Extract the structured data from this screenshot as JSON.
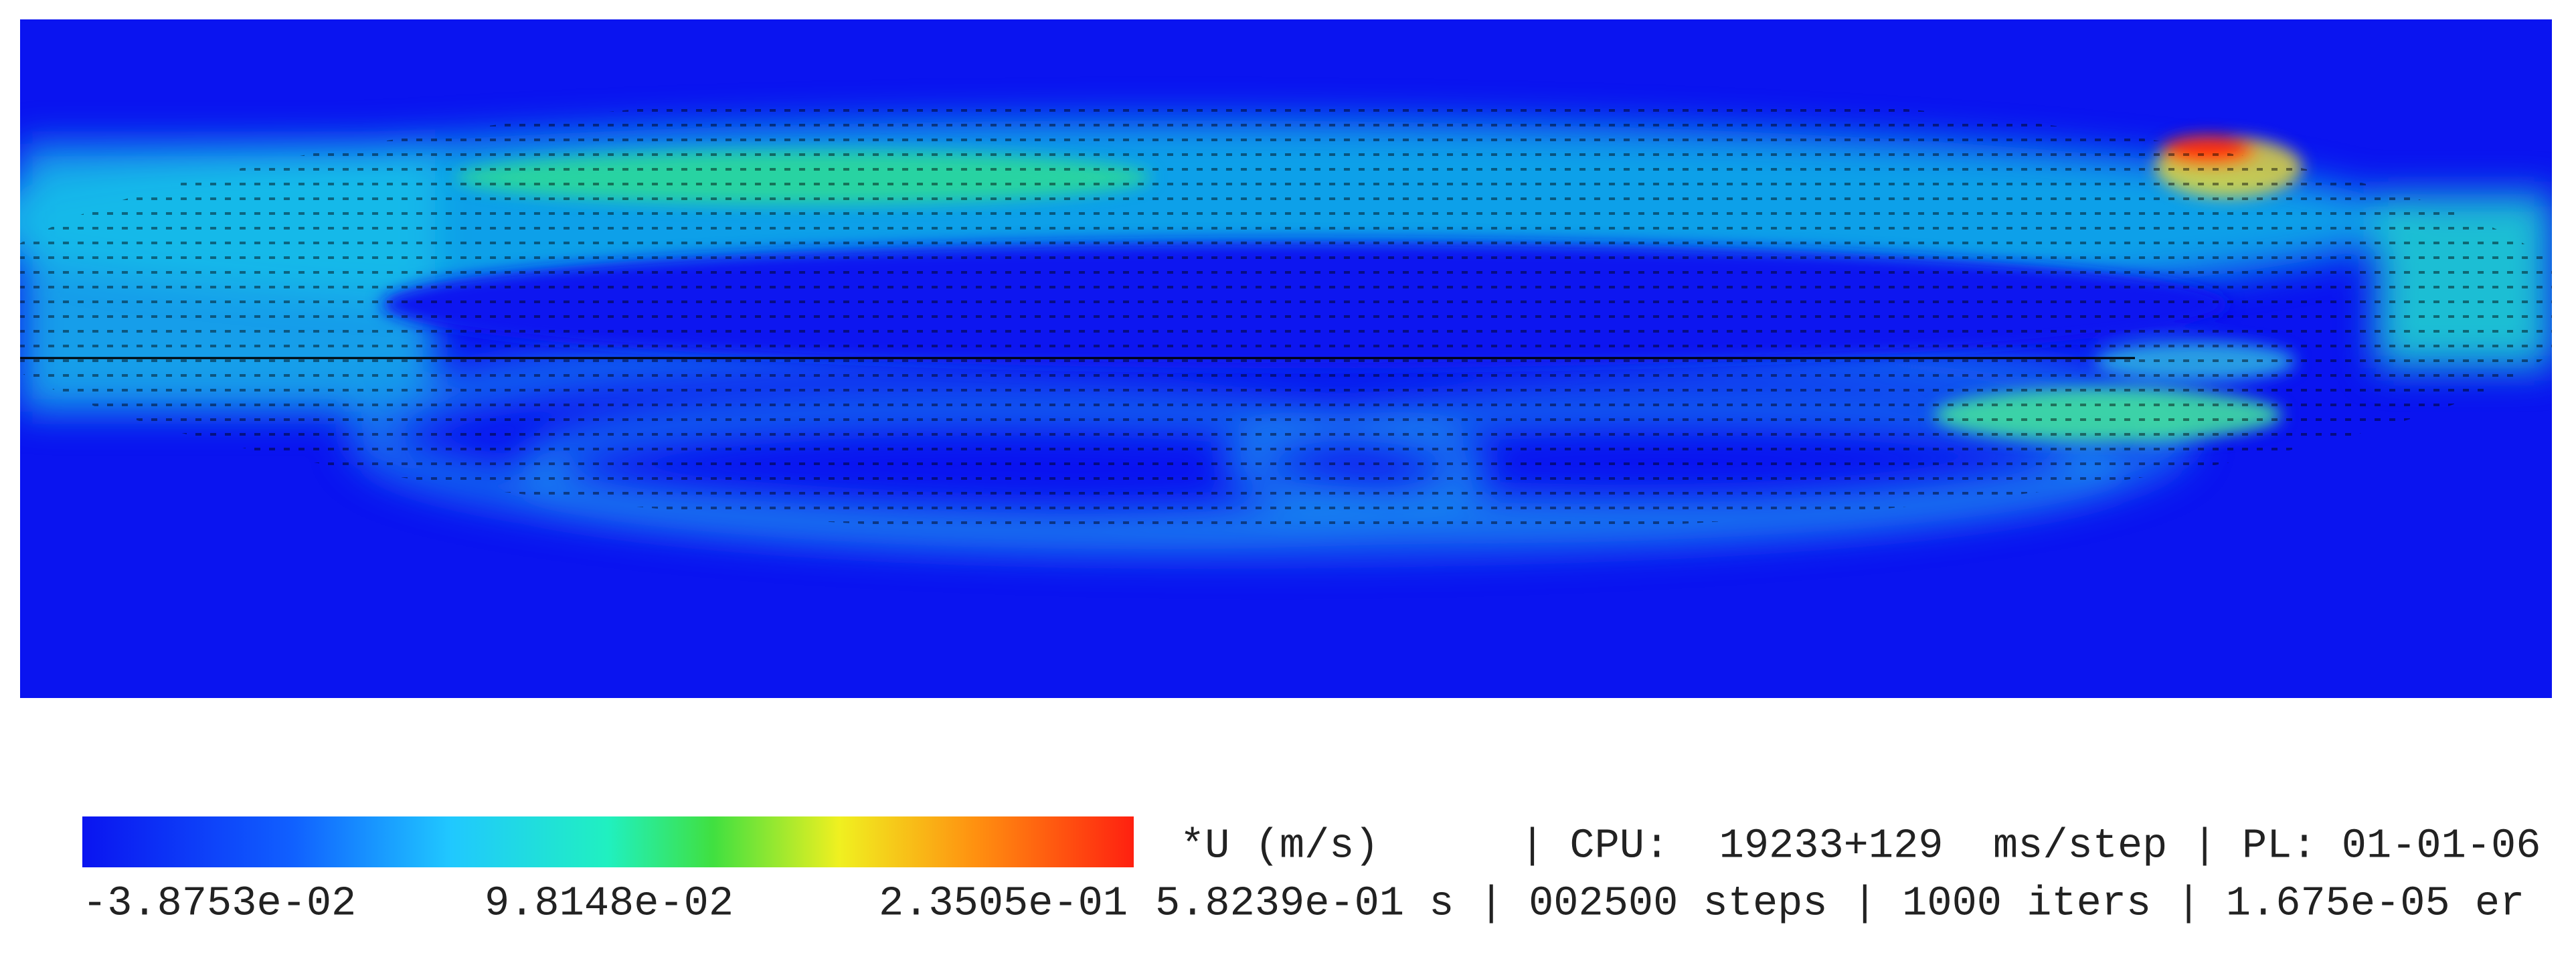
{
  "colorbar": {
    "ticks": [
      "-3.8753e-02",
      "9.8148e-02",
      "2.3505e-01"
    ]
  },
  "field_label": "*U (m/s)",
  "status": {
    "line1": "| CPU:  19233+129  ms/step | PL: 01-01-06",
    "line2": "5.8239e-01 s | 002500 steps | 1000 iters | 1.675e-05 er"
  }
}
